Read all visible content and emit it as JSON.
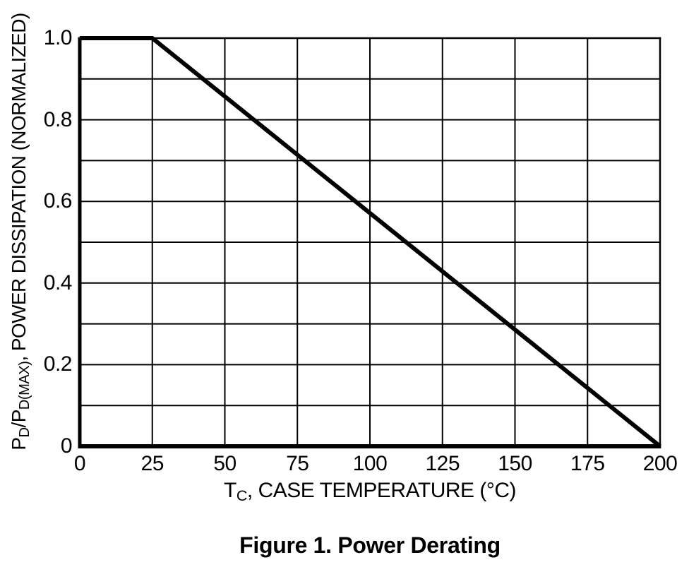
{
  "figure": {
    "caption": "Figure 1. Power Derating"
  },
  "colors": {
    "background": "#ffffff",
    "line": "#000000",
    "grid": "#000000",
    "text": "#000000"
  },
  "axis_labels": {
    "x_main": "T",
    "x_sub": "C",
    "x_rest": ", CASE TEMPERATURE (°C)",
    "y_p1": "P",
    "y_s1": "D",
    "y_p2": "/P",
    "y_s2": "D(MAX)",
    "y_p3": ", POWER DISSIPATION (NORMALIZED)"
  },
  "chart_data": {
    "type": "line",
    "title": "Figure 1. Power Derating",
    "xlabel": "TC, CASE TEMPERATURE (°C)",
    "ylabel": "PD/PD(MAX), POWER DISSIPATION (NORMALIZED)",
    "xlim": [
      0,
      200
    ],
    "ylim": [
      0,
      1.0
    ],
    "grid": true,
    "xticks": [
      {
        "v": 0,
        "label": "0"
      },
      {
        "v": 25,
        "label": "25"
      },
      {
        "v": 50,
        "label": "50"
      },
      {
        "v": 75,
        "label": "75"
      },
      {
        "v": 100,
        "label": "100"
      },
      {
        "v": 125,
        "label": "125"
      },
      {
        "v": 150,
        "label": "150"
      },
      {
        "v": 175,
        "label": "175"
      },
      {
        "v": 200,
        "label": "200"
      }
    ],
    "yticks": [
      {
        "v": 0,
        "label": "0"
      },
      {
        "v": 0.2,
        "label": "0.2"
      },
      {
        "v": 0.4,
        "label": "0.4"
      },
      {
        "v": 0.6,
        "label": "0.6"
      },
      {
        "v": 0.8,
        "label": "0.8"
      },
      {
        "v": 1.0,
        "label": "1.0"
      }
    ],
    "xgrid": [
      25,
      50,
      75,
      100,
      125,
      150,
      175
    ],
    "ygrid": [
      0.1,
      0.2,
      0.3,
      0.4,
      0.5,
      0.6,
      0.7,
      0.8,
      0.9
    ],
    "series": [
      {
        "name": "power-derating",
        "color": "#000000",
        "stroke_width": 6,
        "points": [
          [
            0,
            1.0
          ],
          [
            25,
            1.0
          ],
          [
            200,
            0.0
          ]
        ]
      }
    ]
  }
}
